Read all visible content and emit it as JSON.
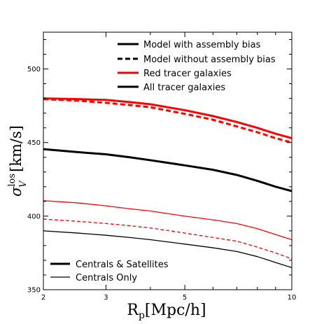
{
  "chart_data": {
    "type": "line",
    "xlabel_main": "R",
    "xlabel_sub": "p",
    "xlabel_rest": "[Mpc/h]",
    "ylabel_main": "σ",
    "ylabel_sub": "V",
    "ylabel_sup": "los",
    "ylabel_rest": " [km/s]",
    "x_scale": "log",
    "xlim": [
      2,
      10
    ],
    "ylim": [
      350,
      525
    ],
    "x_ticks": [
      {
        "value": 2,
        "label": "2"
      },
      {
        "value": 3,
        "label": "3"
      },
      {
        "value": 5,
        "label": "5"
      },
      {
        "value": 10,
        "label": "10"
      }
    ],
    "y_ticks": [
      {
        "value": 350,
        "label": "350"
      },
      {
        "value": 400,
        "label": "400"
      },
      {
        "value": 450,
        "label": "450"
      },
      {
        "value": 500,
        "label": "500"
      }
    ],
    "grid": false,
    "legend_top": {
      "placement": "top-right",
      "entries": [
        {
          "label": "Model with assembly bias",
          "color": "#000000",
          "style": "solid",
          "weight": "thick"
        },
        {
          "label": "Model without assembly bias",
          "color": "#000000",
          "style": "dashed",
          "weight": "thick"
        },
        {
          "label": "Red tracer galaxies",
          "color": "#ff0000",
          "style": "solid",
          "weight": "thick"
        },
        {
          "label": "All tracer galaxies",
          "color": "#000000",
          "style": "solid",
          "weight": "thick"
        }
      ]
    },
    "legend_bottom": {
      "placement": "bottom-left",
      "entries": [
        {
          "label": "Centrals & Satellites",
          "color": "#000000",
          "style": "solid",
          "weight": "thick"
        },
        {
          "label": "Centrals Only",
          "color": "#000000",
          "style": "solid",
          "weight": "thin"
        }
      ]
    },
    "series": [
      {
        "color": "#ff0000",
        "style": "solid",
        "weight": "thick",
        "x": [
          2,
          2.5,
          3,
          3.5,
          4,
          5,
          6,
          7,
          8,
          9,
          10
        ],
        "values": [
          480,
          479.5,
          479,
          477.5,
          476,
          472,
          468,
          464,
          460,
          456,
          453
        ]
      },
      {
        "color": "#ff0000",
        "style": "dashed",
        "weight": "thick",
        "x": [
          2,
          2.5,
          3,
          3.5,
          4,
          5,
          6,
          7,
          8,
          9,
          10
        ],
        "values": [
          479.5,
          478.5,
          477,
          475.5,
          474,
          469.5,
          465.5,
          461,
          457,
          453,
          450
        ]
      },
      {
        "color": "#000000",
        "style": "solid",
        "weight": "thick",
        "x": [
          2,
          2.5,
          3,
          3.5,
          4,
          5,
          6,
          7,
          8,
          9,
          10
        ],
        "values": [
          445.5,
          443.5,
          442,
          440,
          438,
          434.5,
          431.5,
          428,
          424,
          420,
          417
        ]
      },
      {
        "color": "#ff0000",
        "style": "solid",
        "weight": "thin",
        "x": [
          2,
          2.5,
          3,
          3.5,
          4,
          5,
          6,
          7,
          8,
          9,
          10
        ],
        "values": [
          410.5,
          409,
          407,
          405,
          403.5,
          400,
          397.5,
          395,
          391.5,
          387.5,
          384
        ]
      },
      {
        "color": "#ff0000",
        "style": "dashed",
        "weight": "thin",
        "x": [
          2,
          2.5,
          3,
          3.5,
          4,
          5,
          6,
          7,
          8,
          9,
          10
        ],
        "values": [
          398,
          396.5,
          395,
          393.5,
          392,
          388.5,
          385.5,
          383,
          379,
          375,
          371
        ]
      },
      {
        "color": "#000000",
        "style": "solid",
        "weight": "thin",
        "x": [
          2,
          2.5,
          3,
          3.5,
          4,
          5,
          6,
          7,
          8,
          9,
          10
        ],
        "values": [
          390,
          388.5,
          387,
          385.5,
          384,
          381,
          378.5,
          376,
          372.5,
          368.5,
          365
        ]
      }
    ]
  }
}
